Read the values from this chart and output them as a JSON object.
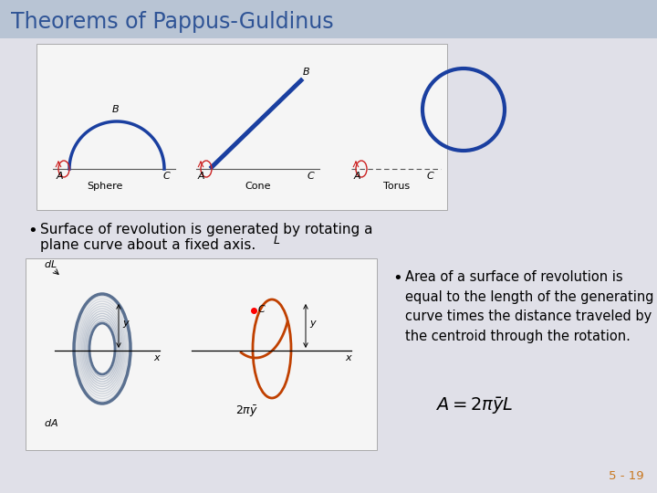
{
  "title": "Theorems of Pappus-Guldinus",
  "title_color": "#2F5496",
  "title_bg_color": "#B8C4D4",
  "bg_color": "#E0E0E8",
  "bullet1_line1": "Surface of revolution is generated by rotating a",
  "bullet1_line2": "plane curve about a fixed axis.",
  "bullet2_line1": "Area of a surface of revolution is",
  "bullet2_line2": "equal to the length of the generating",
  "bullet2_line3": "curve times the distance traveled by",
  "bullet2_line4": "the centroid through the rotation.",
  "formula": "$A = 2\\pi\\bar{y}L$",
  "page_num": "5 - 19",
  "page_num_color": "#C87820",
  "sphere_label": "Sphere",
  "cone_label": "Cone",
  "torus_label": "Torus",
  "content_box_color": "#F5F5F5",
  "blue_color": "#1A3FA0",
  "red_color": "#CC2222",
  "orange_color": "#C04000",
  "gray_ring_color": "#5A7090"
}
